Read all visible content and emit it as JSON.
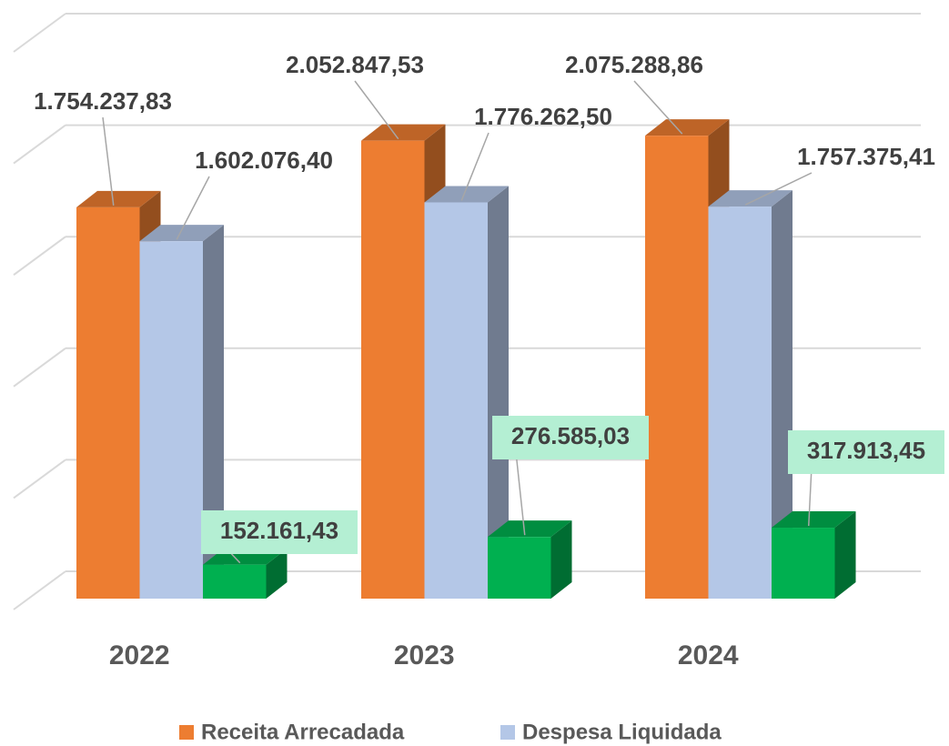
{
  "chart_data": {
    "type": "bar3d",
    "categories": [
      "2022",
      "2023",
      "2024"
    ],
    "series": [
      {
        "name": "Receita Arrecadada",
        "color": "#ed7d31",
        "values": [
          1754237.83,
          2052847.53,
          2075288.86
        ],
        "value_labels": [
          "1.754.237,83",
          "2.052.847,53",
          "2.075.288,86"
        ]
      },
      {
        "name": "Despesa Liquidada",
        "color": "#b4c7e7",
        "values": [
          1602076.4,
          1776262.5,
          1757375.41
        ],
        "value_labels": [
          "1.602.076,40",
          "1.776.262,50",
          "1.757.375,41"
        ]
      },
      {
        "color": "#00b050",
        "values": [
          152161.43,
          276585.03,
          317913.45
        ],
        "value_labels": [
          "152.161,43",
          "276.585,03",
          "317.913,45"
        ]
      }
    ],
    "ylim": [
      0,
      2500000
    ],
    "yticks": [
      0,
      500000,
      1000000,
      1500000,
      2000000,
      2500000
    ],
    "grid": true,
    "legend": "bottom"
  }
}
